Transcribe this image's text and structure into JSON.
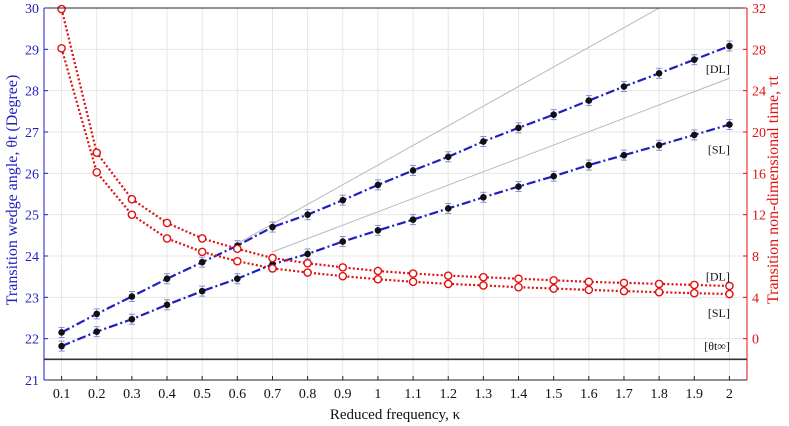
{
  "chart_data": {
    "type": "line",
    "xlabel": "Reduced frequency, κ",
    "ylabel_left": "Transition wedge angle, θt (Degree)",
    "ylabel_right": "Transition non-dimensional time, τt",
    "x": [
      0.1,
      0.2,
      0.3,
      0.4,
      0.5,
      0.6,
      0.7,
      0.8,
      0.9,
      1.0,
      1.1,
      1.2,
      1.3,
      1.4,
      1.5,
      1.6,
      1.7,
      1.8,
      1.9,
      2.0
    ],
    "x_tick_labels": [
      "0.1",
      "0.2",
      "0.3",
      "0.4",
      "0.5",
      "0.6",
      "0.7",
      "0.8",
      "0.9",
      "1",
      "1.1",
      "1.2",
      "1.3",
      "1.4",
      "1.5",
      "1.6",
      "1.7",
      "1.8",
      "1.9",
      "2"
    ],
    "left_axis": {
      "ylim": [
        21,
        30
      ],
      "ticks": [
        21,
        22,
        23,
        24,
        25,
        26,
        27,
        28,
        29,
        30
      ],
      "color": "#1f1fbf"
    },
    "right_axis": {
      "ylim": [
        -4,
        32
      ],
      "ticks": [
        0,
        4,
        8,
        12,
        16,
        20,
        24,
        28,
        32
      ],
      "color": "#e01010"
    },
    "series": [
      {
        "name": "[DL]",
        "axis": "left",
        "style": "dash-dot",
        "color": "#1f1fbf",
        "values": [
          22.15,
          22.6,
          23.02,
          23.45,
          23.85,
          24.25,
          24.7,
          25.0,
          25.35,
          25.72,
          26.07,
          26.4,
          26.77,
          27.1,
          27.42,
          27.76,
          28.1,
          28.42,
          28.75,
          29.08
        ]
      },
      {
        "name": "[SL]",
        "axis": "left",
        "style": "dash-dot",
        "color": "#1f1fbf",
        "values": [
          21.82,
          22.17,
          22.47,
          22.82,
          23.15,
          23.45,
          23.8,
          24.05,
          24.35,
          24.62,
          24.88,
          25.15,
          25.42,
          25.68,
          25.93,
          26.2,
          26.44,
          26.68,
          26.93,
          27.18
        ]
      },
      {
        "name": "[DL]",
        "axis": "right",
        "style": "dotted",
        "color": "#e01010",
        "values": [
          31.9,
          18.0,
          13.5,
          11.2,
          9.7,
          8.7,
          7.8,
          7.3,
          6.9,
          6.55,
          6.3,
          6.1,
          5.95,
          5.8,
          5.65,
          5.5,
          5.4,
          5.3,
          5.2,
          5.1
        ]
      },
      {
        "name": "[SL]",
        "axis": "right",
        "style": "dotted",
        "color": "#e01010",
        "values": [
          28.1,
          16.1,
          12.0,
          9.7,
          8.4,
          7.5,
          6.8,
          6.4,
          6.05,
          5.75,
          5.5,
          5.3,
          5.15,
          4.98,
          4.85,
          4.72,
          4.6,
          4.5,
          4.4,
          4.32
        ]
      }
    ],
    "reference_lines": [
      {
        "axis": "left",
        "color": "#b8b8b8",
        "x": [
          0.6,
          1.8
        ],
        "values": [
          24.3,
          30.0
        ]
      },
      {
        "axis": "left",
        "color": "#b8b8b8",
        "x": [
          0.7,
          2.0
        ],
        "values": [
          24.1,
          28.3
        ]
      }
    ],
    "theta_inf": {
      "label": "[θt∞]",
      "value": 21.5,
      "axis": "left",
      "color": "#333333"
    },
    "annotations": [
      {
        "text": "[DL]",
        "x": 1.95,
        "axis": "left",
        "y": 28.52
      },
      {
        "text": "[SL]",
        "x": 1.95,
        "axis": "left",
        "y": 26.58
      },
      {
        "text": "[DL]",
        "x": 1.95,
        "axis": "right",
        "y": 6.0
      },
      {
        "text": "[SL]",
        "x": 1.95,
        "axis": "right",
        "y": 2.5
      },
      {
        "text": "[θt∞]",
        "x": 1.95,
        "axis": "left",
        "y": 21.82
      }
    ],
    "grid": true
  }
}
